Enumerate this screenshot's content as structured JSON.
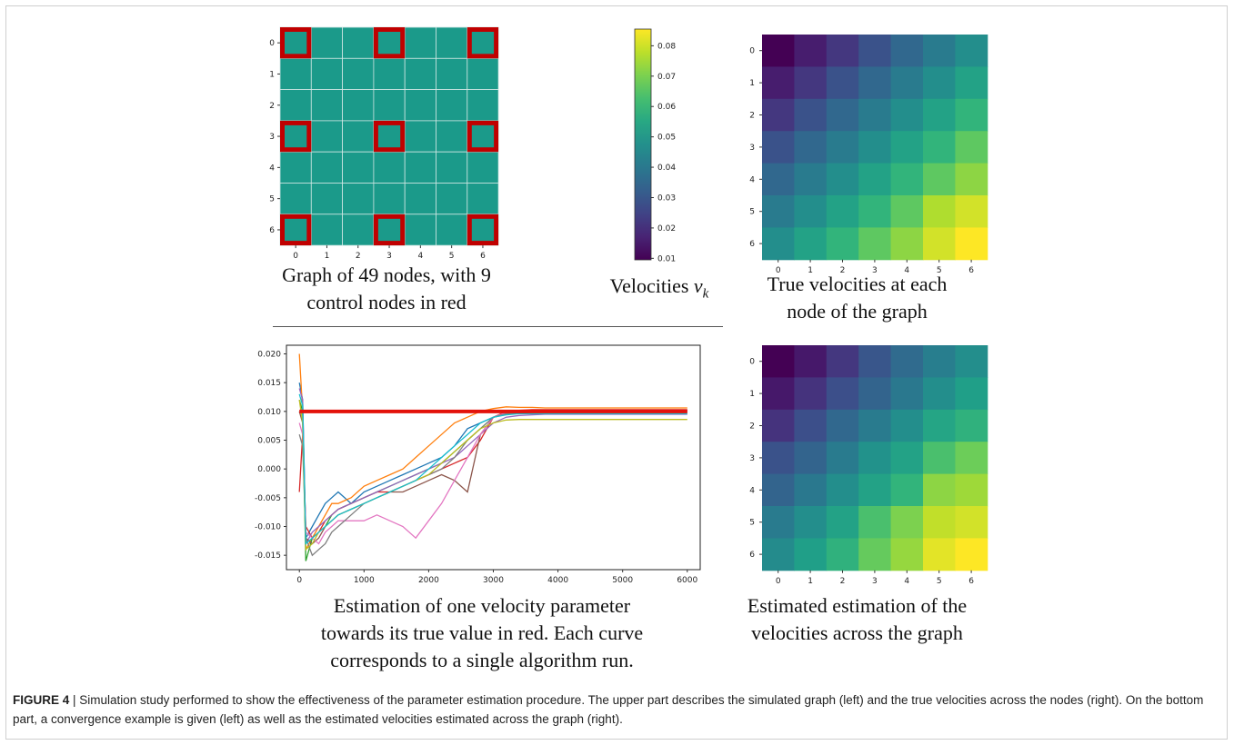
{
  "grid_panel": {
    "tick_labels": [
      "0",
      "1",
      "2",
      "3",
      "4",
      "5",
      "6"
    ],
    "cell_color": "#1b9a8a",
    "control_color": "#c00000",
    "control_nodes": [
      [
        0,
        0
      ],
      [
        0,
        3
      ],
      [
        0,
        6
      ],
      [
        3,
        0
      ],
      [
        3,
        3
      ],
      [
        3,
        6
      ],
      [
        6,
        0
      ],
      [
        6,
        3
      ],
      [
        6,
        6
      ]
    ],
    "caption_line1": "Graph of 49 nodes, with 9",
    "caption_line2": "control nodes in red"
  },
  "colorbar": {
    "ticks": [
      "0.08",
      "0.07",
      "0.06",
      "0.05",
      "0.04",
      "0.03",
      "0.02",
      "0.01"
    ],
    "caption": "Velocities ",
    "symbol": "v",
    "subscript": "k"
  },
  "true_panel": {
    "tick_labels": [
      "0",
      "1",
      "2",
      "3",
      "4",
      "5",
      "6"
    ],
    "caption_line1": "True velocities at each",
    "caption_line2": "node of the graph"
  },
  "estimated_panel": {
    "tick_labels": [
      "0",
      "1",
      "2",
      "3",
      "4",
      "5",
      "6"
    ],
    "caption_line1": "Estimated estimation of the",
    "caption_line2": "velocities across the graph"
  },
  "convergence_panel": {
    "caption_line1": "Estimation of one velocity parameter",
    "caption_line2": "towards its true value in red. Each curve",
    "caption_line3": "corresponds to a single algorithm run."
  },
  "figure_caption": {
    "label": "FIGURE 4",
    "text": " | Simulation study performed to show the effectiveness of the parameter estimation procedure. The upper part describes the simulated graph (left) and the true velocities across the nodes (right). On the bottom part, a convergence example is given (left) as well as the estimated velocities estimated across the graph (right)."
  },
  "chart_data": [
    {
      "type": "heatmap",
      "title": "",
      "x": [
        0,
        1,
        2,
        3,
        4,
        5,
        6
      ],
      "y": [
        0,
        1,
        2,
        3,
        4,
        5,
        6
      ],
      "values": [
        [
          0.01,
          0.016,
          0.022,
          0.029,
          0.035,
          0.041,
          0.047
        ],
        [
          0.016,
          0.022,
          0.029,
          0.035,
          0.041,
          0.047,
          0.053
        ],
        [
          0.022,
          0.029,
          0.035,
          0.041,
          0.047,
          0.053,
          0.059
        ],
        [
          0.029,
          0.035,
          0.041,
          0.047,
          0.053,
          0.059,
          0.066
        ],
        [
          0.035,
          0.041,
          0.047,
          0.053,
          0.059,
          0.066,
          0.072
        ],
        [
          0.041,
          0.047,
          0.053,
          0.059,
          0.066,
          0.076,
          0.08
        ],
        [
          0.047,
          0.053,
          0.059,
          0.066,
          0.072,
          0.08,
          0.085
        ]
      ],
      "colormap": "viridis",
      "vmin": 0.01,
      "vmax": 0.085
    },
    {
      "type": "heatmap",
      "title": "",
      "x": [
        0,
        1,
        2,
        3,
        4,
        5,
        6
      ],
      "y": [
        0,
        1,
        2,
        3,
        4,
        5,
        6
      ],
      "values": [
        [
          0.01,
          0.015,
          0.022,
          0.03,
          0.036,
          0.042,
          0.047
        ],
        [
          0.015,
          0.021,
          0.028,
          0.034,
          0.04,
          0.047,
          0.052
        ],
        [
          0.021,
          0.028,
          0.035,
          0.041,
          0.047,
          0.054,
          0.058
        ],
        [
          0.029,
          0.034,
          0.041,
          0.048,
          0.053,
          0.063,
          0.068
        ],
        [
          0.034,
          0.04,
          0.047,
          0.053,
          0.059,
          0.072,
          0.074
        ],
        [
          0.041,
          0.047,
          0.053,
          0.063,
          0.07,
          0.078,
          0.08
        ],
        [
          0.046,
          0.052,
          0.058,
          0.067,
          0.073,
          0.082,
          0.085
        ]
      ],
      "colormap": "viridis",
      "vmin": 0.01,
      "vmax": 0.085
    },
    {
      "type": "line",
      "title": "",
      "xlabel": "",
      "ylabel": "",
      "xlim": [
        -200,
        6200
      ],
      "ylim": [
        -0.0175,
        0.0215
      ],
      "xticks": [
        0,
        1000,
        2000,
        3000,
        4000,
        5000,
        6000
      ],
      "yticks": [
        -0.015,
        -0.01,
        -0.005,
        0.0,
        0.005,
        0.01,
        0.015,
        0.02
      ],
      "true_value": 0.01,
      "x": [
        0,
        50,
        100,
        200,
        300,
        400,
        500,
        600,
        800,
        1000,
        1200,
        1400,
        1600,
        1800,
        2000,
        2200,
        2400,
        2600,
        2800,
        3000,
        3200,
        3400,
        3600,
        3800,
        4000,
        4500,
        5000,
        5500,
        6000
      ],
      "series": [
        {
          "color": "#1f77b4",
          "values": [
            0.015,
            0.012,
            -0.012,
            -0.01,
            -0.008,
            -0.006,
            -0.005,
            -0.004,
            -0.006,
            -0.004,
            -0.003,
            -0.002,
            -0.001,
            0.0,
            0.001,
            0.002,
            0.004,
            0.007,
            0.008,
            0.009,
            0.0095,
            0.0098,
            0.0099,
            0.0099,
            0.01,
            0.01,
            0.01,
            0.01,
            0.01
          ]
        },
        {
          "color": "#ff7f0e",
          "values": [
            0.02,
            0.01,
            -0.014,
            -0.012,
            -0.01,
            -0.008,
            -0.006,
            -0.006,
            -0.005,
            -0.003,
            -0.002,
            -0.001,
            0.0,
            0.002,
            0.004,
            0.006,
            0.008,
            0.009,
            0.01,
            0.0105,
            0.0108,
            0.0107,
            0.0107,
            0.0106,
            0.0106,
            0.0106,
            0.0106,
            0.0106,
            0.0106
          ]
        },
        {
          "color": "#2ca02c",
          "values": [
            0.012,
            0.01,
            -0.016,
            -0.012,
            -0.011,
            -0.01,
            -0.008,
            -0.007,
            -0.006,
            -0.005,
            -0.004,
            -0.003,
            -0.002,
            -0.001,
            0.0,
            0.001,
            0.003,
            0.005,
            0.007,
            0.009,
            0.0095,
            0.0097,
            0.0098,
            0.0098,
            0.0098,
            0.0098,
            0.0098,
            0.0098,
            0.0098
          ]
        },
        {
          "color": "#d62728",
          "values": [
            -0.004,
            0.006,
            -0.01,
            -0.012,
            -0.011,
            -0.009,
            -0.008,
            -0.007,
            -0.006,
            -0.005,
            -0.004,
            -0.004,
            -0.003,
            -0.002,
            -0.001,
            0.0,
            0.001,
            0.002,
            0.005,
            0.009,
            0.01,
            0.0102,
            0.0103,
            0.0103,
            0.0103,
            0.0103,
            0.0103,
            0.0103,
            0.0103
          ]
        },
        {
          "color": "#9467bd",
          "values": [
            0.014,
            0.012,
            -0.013,
            -0.011,
            -0.01,
            -0.009,
            -0.008,
            -0.007,
            -0.006,
            -0.005,
            -0.004,
            -0.003,
            -0.002,
            -0.001,
            0.0,
            0.001,
            0.002,
            0.004,
            0.006,
            0.008,
            0.009,
            0.0093,
            0.0094,
            0.0095,
            0.0095,
            0.0095,
            0.0095,
            0.0095,
            0.0095
          ]
        },
        {
          "color": "#8c564b",
          "values": [
            0.01,
            0.008,
            -0.012,
            -0.013,
            -0.012,
            -0.01,
            -0.009,
            -0.008,
            -0.007,
            -0.006,
            -0.005,
            -0.004,
            -0.004,
            -0.003,
            -0.002,
            -0.001,
            -0.002,
            -0.004,
            0.006,
            0.009,
            0.0098,
            0.0101,
            0.0102,
            0.0102,
            0.0102,
            0.0102,
            0.0102,
            0.0102,
            0.0102
          ]
        },
        {
          "color": "#e377c2",
          "values": [
            0.008,
            0.006,
            -0.011,
            -0.012,
            -0.013,
            -0.011,
            -0.01,
            -0.009,
            -0.009,
            -0.009,
            -0.008,
            -0.009,
            -0.01,
            -0.012,
            -0.009,
            -0.006,
            -0.002,
            0.002,
            0.006,
            0.009,
            0.0098,
            0.01,
            0.0101,
            0.0101,
            0.0101,
            0.0101,
            0.0101,
            0.0101,
            0.0101
          ]
        },
        {
          "color": "#7f7f7f",
          "values": [
            0.006,
            0.004,
            -0.012,
            -0.015,
            -0.014,
            -0.013,
            -0.011,
            -0.01,
            -0.008,
            -0.006,
            -0.005,
            -0.004,
            -0.003,
            -0.002,
            -0.001,
            0.0,
            0.002,
            0.005,
            0.007,
            0.009,
            0.0096,
            0.0098,
            0.0099,
            0.0099,
            0.0099,
            0.0099,
            0.0099,
            0.0099,
            0.0099
          ]
        },
        {
          "color": "#bcbd22",
          "values": [
            0.012,
            0.008,
            -0.014,
            -0.013,
            -0.011,
            -0.01,
            -0.009,
            -0.008,
            -0.007,
            -0.006,
            -0.005,
            -0.004,
            -0.003,
            -0.002,
            -0.001,
            0.001,
            0.003,
            0.005,
            0.007,
            0.008,
            0.0085,
            0.0086,
            0.0086,
            0.0086,
            0.0086,
            0.0086,
            0.0086,
            0.0086,
            0.0086
          ]
        },
        {
          "color": "#17becf",
          "values": [
            0.013,
            0.011,
            -0.013,
            -0.012,
            -0.011,
            -0.01,
            -0.009,
            -0.008,
            -0.007,
            -0.006,
            -0.005,
            -0.004,
            -0.003,
            -0.002,
            0.0,
            0.002,
            0.004,
            0.006,
            0.008,
            0.009,
            0.0094,
            0.0096,
            0.0096,
            0.0096,
            0.0096,
            0.0096,
            0.0096,
            0.0096,
            0.0096
          ]
        }
      ]
    }
  ]
}
